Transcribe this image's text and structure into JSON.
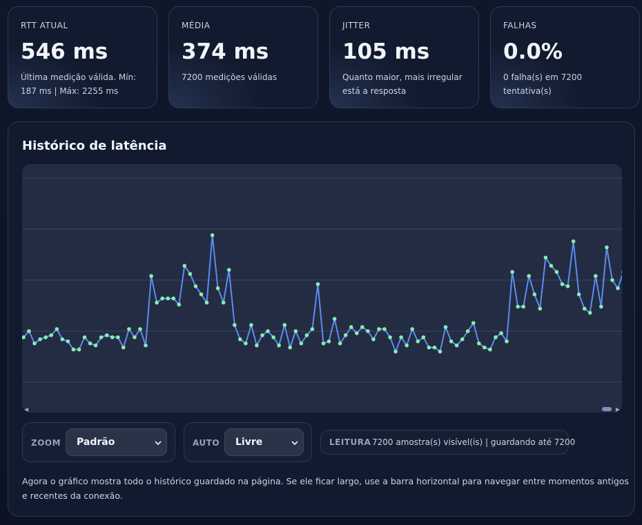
{
  "cards": [
    {
      "label": "RTT ATUAL",
      "value": "546 ms",
      "sub": "Última medição válida. Mín: 187 ms | Máx: 2255 ms"
    },
    {
      "label": "MÉDIA",
      "value": "374 ms",
      "sub": "7200 medições válidas"
    },
    {
      "label": "JITTER",
      "value": "105 ms",
      "sub": "Quanto maior, mais irregular está a resposta"
    },
    {
      "label": "FALHAS",
      "value": "0.0%",
      "sub": "0 falha(s) em 7200 tentativa(s)"
    }
  ],
  "panel": {
    "title": "Histórico de latência"
  },
  "controls": {
    "zoom_label": "ZOOM",
    "zoom_value": "Padrão",
    "auto_label": "AUTO",
    "auto_value": "Livre",
    "reading_label": "LEITURA",
    "reading_text": "7200 amostra(s) visível(is) | guardando até 7200"
  },
  "note": "Agora o gráfico mostra todo o histórico guardado na página. Se ele ficar largo, use a barra horizontal para navegar entre momentos antigos e recentes da conexão.",
  "colors": {
    "line": "#5b8def",
    "point": "#86efac",
    "grid": "#3a4560"
  },
  "chart_data": {
    "type": "line",
    "title": "",
    "xlabel": "",
    "ylabel": "",
    "grid": true,
    "ylim": [
      0,
      1
    ],
    "values": [
      0.22,
      0.25,
      0.19,
      0.21,
      0.22,
      0.23,
      0.26,
      0.21,
      0.2,
      0.16,
      0.16,
      0.22,
      0.19,
      0.18,
      0.22,
      0.23,
      0.22,
      0.22,
      0.17,
      0.26,
      0.22,
      0.26,
      0.18,
      0.52,
      0.39,
      0.41,
      0.41,
      0.41,
      0.38,
      0.57,
      0.53,
      0.47,
      0.43,
      0.39,
      0.72,
      0.46,
      0.39,
      0.55,
      0.28,
      0.21,
      0.19,
      0.28,
      0.18,
      0.23,
      0.25,
      0.22,
      0.18,
      0.28,
      0.17,
      0.25,
      0.19,
      0.23,
      0.26,
      0.48,
      0.19,
      0.2,
      0.31,
      0.19,
      0.23,
      0.27,
      0.24,
      0.27,
      0.25,
      0.21,
      0.26,
      0.26,
      0.22,
      0.15,
      0.22,
      0.18,
      0.26,
      0.2,
      0.22,
      0.17,
      0.17,
      0.15,
      0.27,
      0.2,
      0.18,
      0.21,
      0.25,
      0.29,
      0.19,
      0.17,
      0.16,
      0.22,
      0.24,
      0.2,
      0.54,
      0.37,
      0.37,
      0.52,
      0.43,
      0.36,
      0.61,
      0.57,
      0.54,
      0.48,
      0.47,
      0.69,
      0.43,
      0.36,
      0.34,
      0.52,
      0.37,
      0.66,
      0.5,
      0.46,
      0.54
    ]
  }
}
